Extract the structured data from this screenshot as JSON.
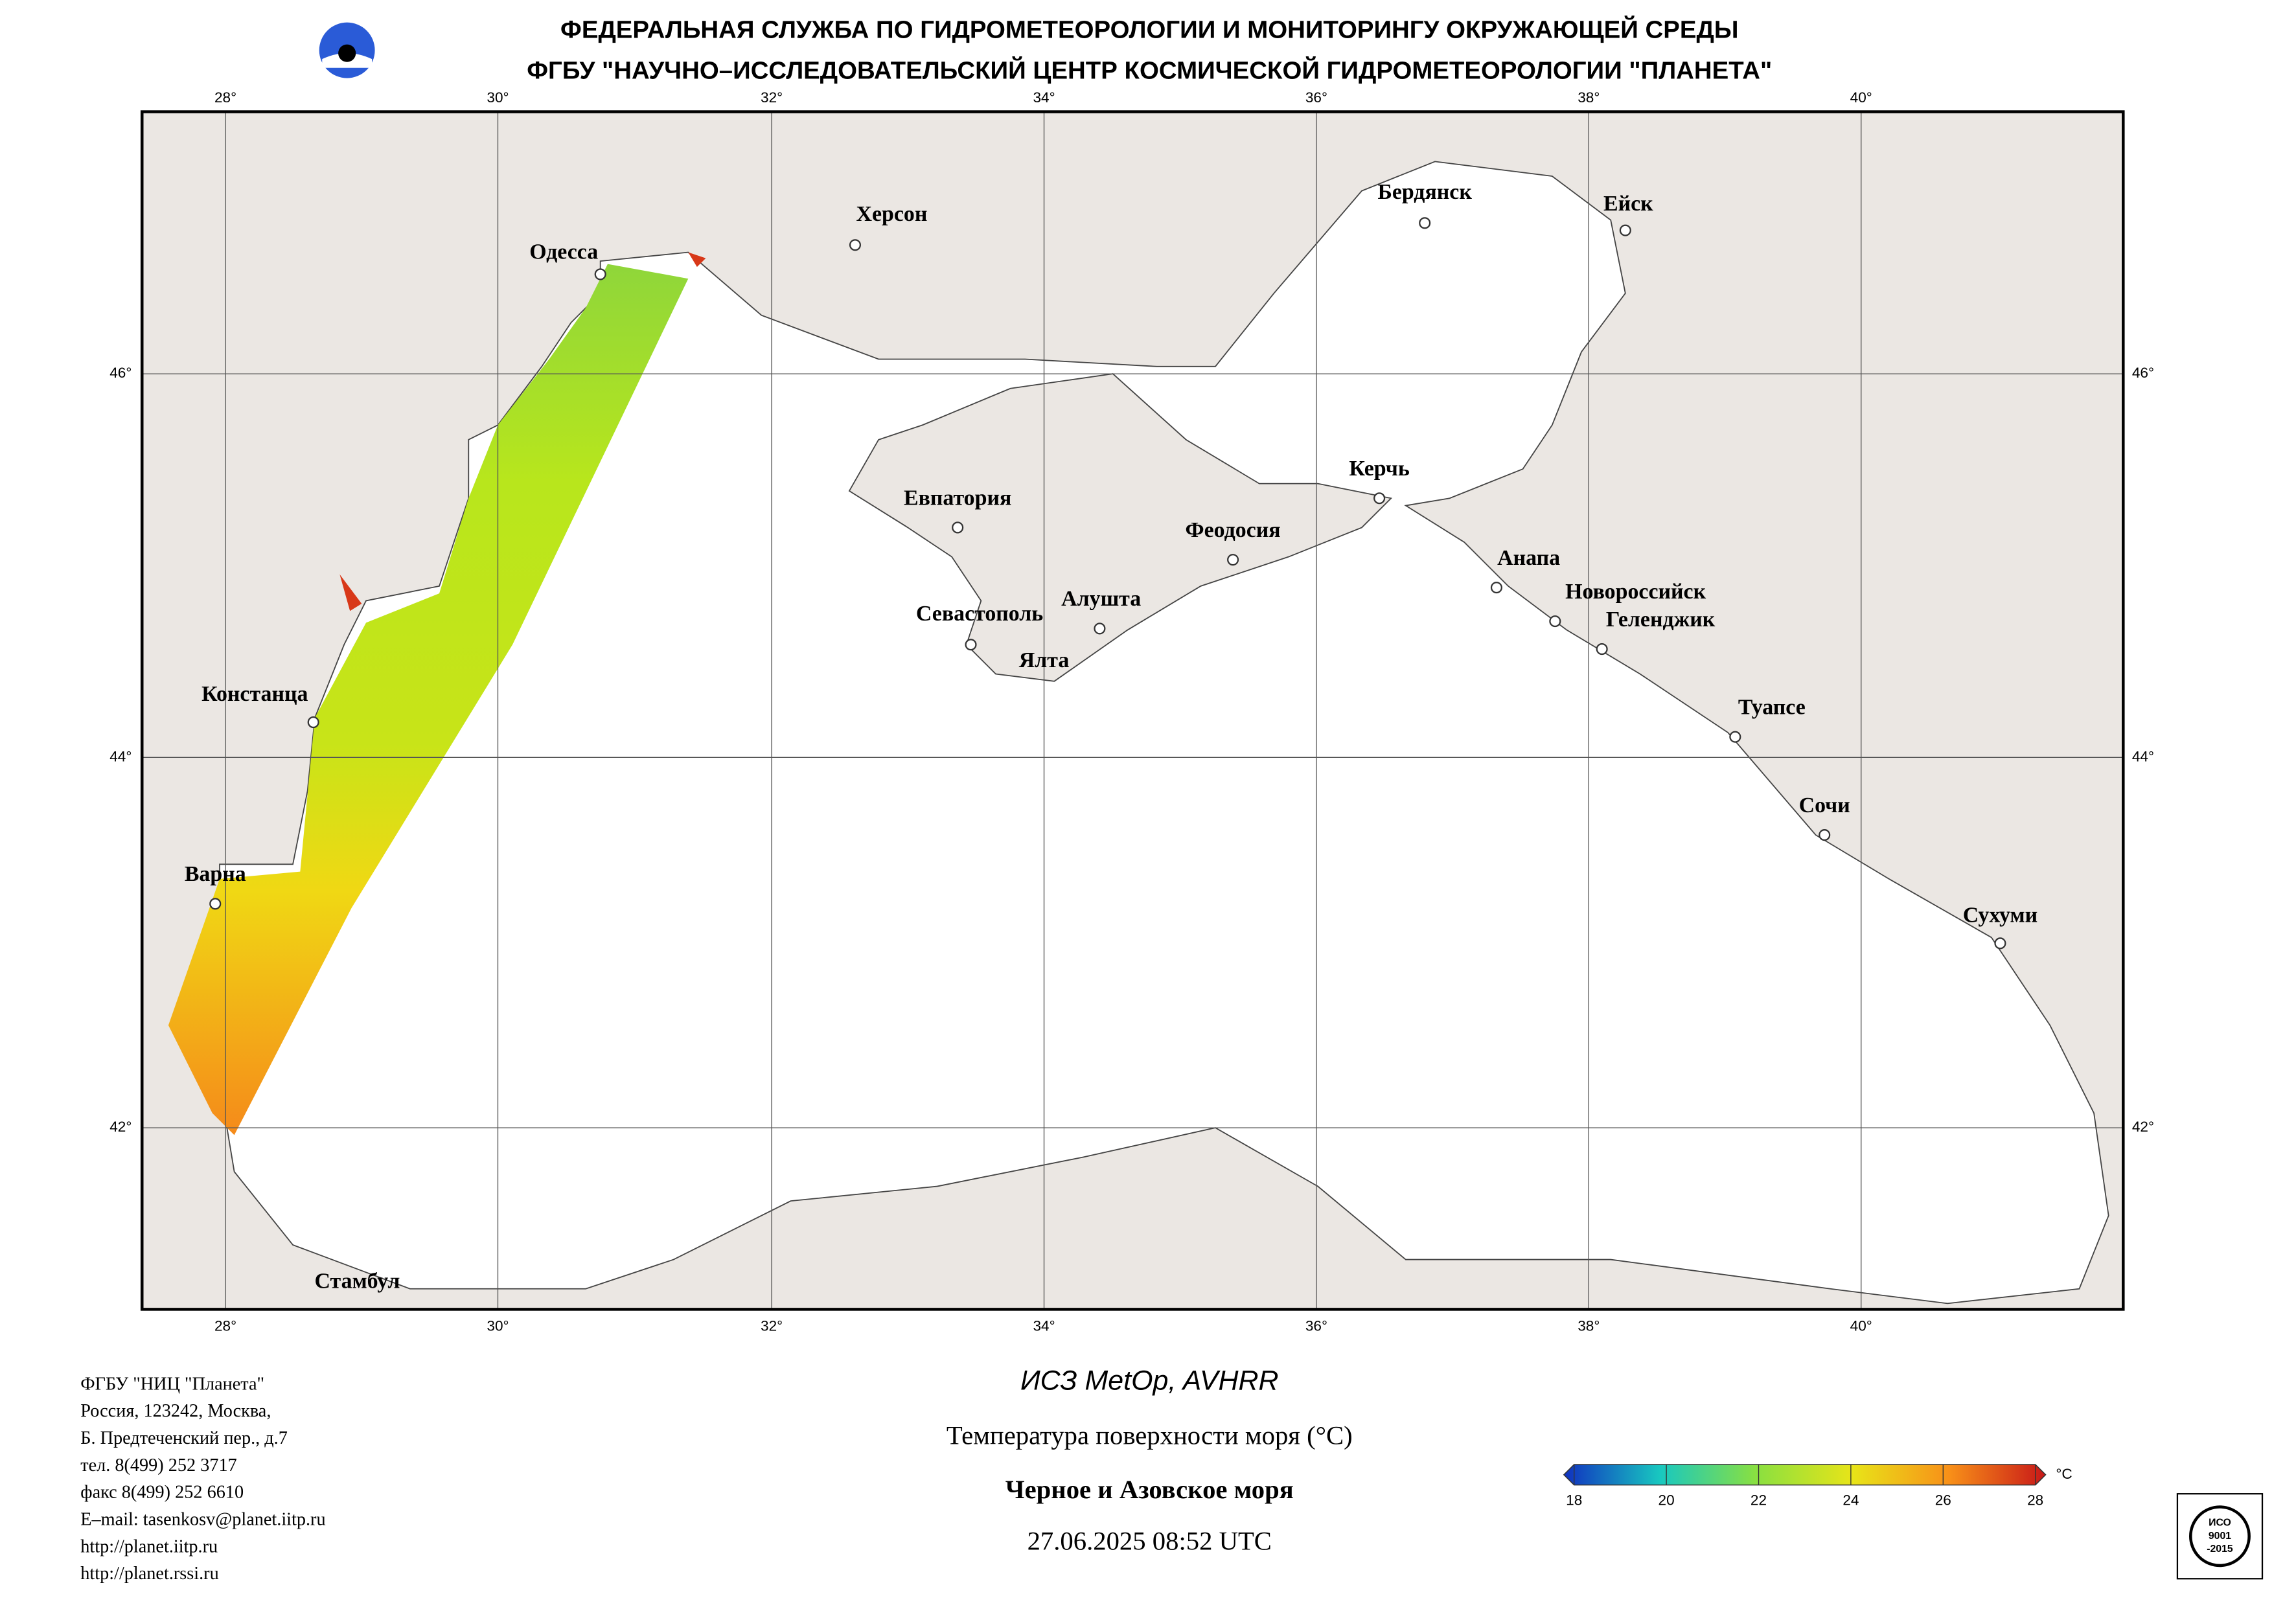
{
  "header": {
    "line1": "ФЕДЕРАЛЬНАЯ СЛУЖБА ПО ГИДРОМЕТЕОРОЛОГИИ И МОНИТОРИНГУ ОКРУЖАЮЩЕЙ СРЕДЫ",
    "line2": "ФГБУ \"НАУЧНО–ИССЛЕДОВАТЕЛЬСКИЙ ЦЕНТР КОСМИЧЕСКОЙ ГИДРОМЕТЕОРОЛОГИИ \"ПЛАНЕТА\""
  },
  "map": {
    "lon_labels": [
      "28°",
      "30°",
      "32°",
      "34°",
      "36°",
      "38°",
      "40°"
    ],
    "lat_labels": [
      "46°",
      "44°",
      "42°"
    ],
    "cities": [
      "Одесса",
      "Херсон",
      "Бердянск",
      "Ейск",
      "Евпатория",
      "Керчь",
      "Феодосия",
      "Анапа",
      "Новороссийск",
      "Геленджик",
      "Алушта",
      "Севастополь",
      "Ялта",
      "Констанца",
      "Туапсе",
      "Сочи",
      "Варна",
      "Сухуми",
      "Стамбул"
    ]
  },
  "footer": {
    "address": [
      "ФГБУ \"НИЦ \"Планета\"",
      "Россия, 123242, Москва,",
      "Б. Предтеченский пер., д.7",
      "тел. 8(499) 252 3717",
      "факс 8(499) 252 6610",
      "E–mail: tasenkosv@planet.iitp.ru",
      "http://planet.iitp.ru",
      "http://planet.rssi.ru"
    ],
    "satellite": "ИСЗ MetOp, AVHRR",
    "product": "Температура поверхности моря (°С)",
    "region": "Черное и Азовское моря",
    "datetime": "27.06.2025 08:52 UTC"
  },
  "colorbar": {
    "ticks": [
      18,
      20,
      22,
      24,
      26,
      28
    ],
    "unit": "°C"
  },
  "badge": {
    "lines": [
      "ИСО",
      "9001",
      "-2015"
    ]
  }
}
